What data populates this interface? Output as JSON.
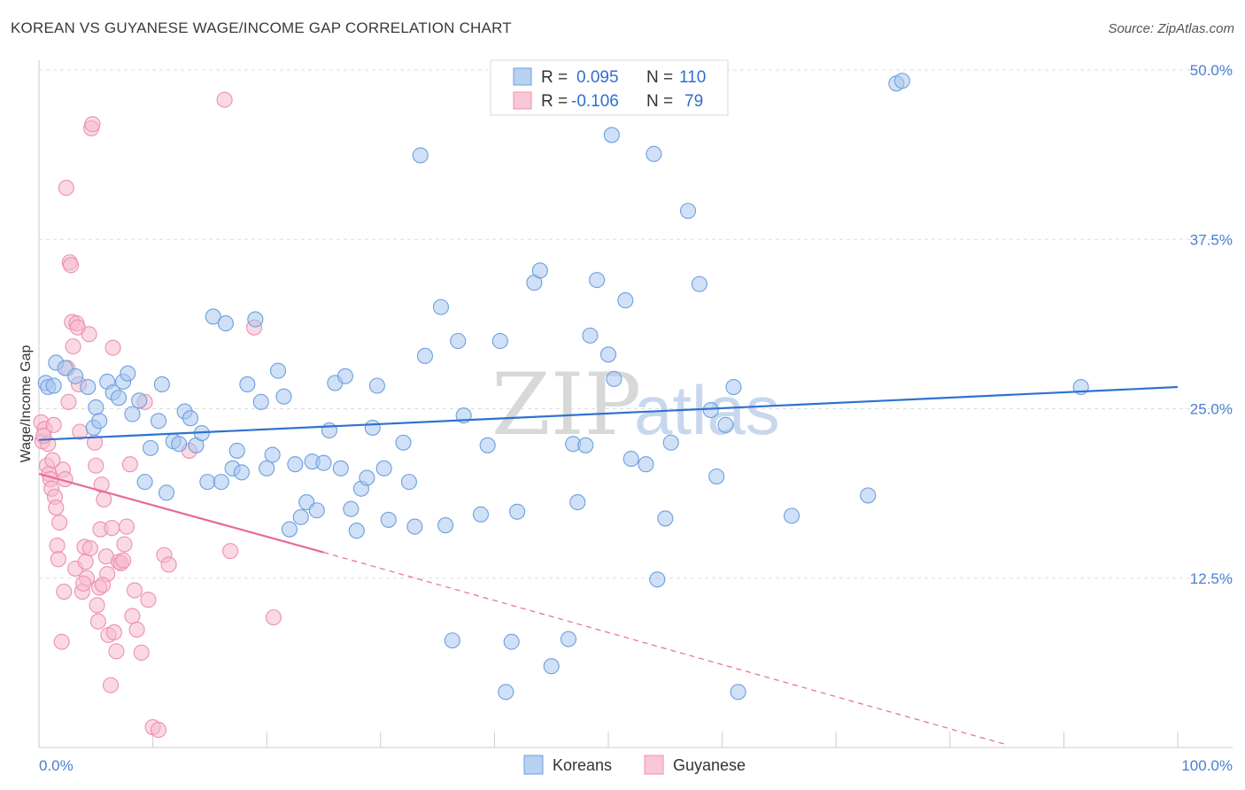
{
  "header": {
    "title": "KOREAN VS GUYANESE WAGE/INCOME GAP CORRELATION CHART",
    "source": "Source: ZipAtlas.com"
  },
  "legend": {
    "rows": [
      {
        "r_label": "R =",
        "r_value": "0.095",
        "n_label": "N =",
        "n_value": "110"
      },
      {
        "r_label": "R =",
        "r_value": "-0.106",
        "n_label": "N =",
        "n_value": "79"
      }
    ]
  },
  "bottom_legend": [
    "Koreans",
    "Guyanese"
  ],
  "watermark": {
    "zip": "ZIP",
    "atlas": "atlas"
  },
  "colors": {
    "koreans_fill": "#a9c6ee",
    "koreans_stroke": "#6d9fe0",
    "koreans_line": "#2f72cf",
    "guyanese_fill": "#f6b9cc",
    "guyanese_stroke": "#ee8fb0",
    "guyanese_line": "#e8699a",
    "tick_label": "#4a7fd0",
    "grid": "#dddddd"
  },
  "chart_data": {
    "type": "scatter",
    "title": "KOREAN VS GUYANESE WAGE/INCOME GAP CORRELATION CHART",
    "xlabel": "",
    "ylabel": "Wage/Income Gap",
    "xlim": [
      0,
      100
    ],
    "ylim": [
      0,
      50
    ],
    "x_tick_labels": [
      "0.0%",
      "100.0%"
    ],
    "y_ticks": [
      12.5,
      25.0,
      37.5,
      50.0
    ],
    "y_tick_labels": [
      "12.5%",
      "25.0%",
      "37.5%",
      "50.0%"
    ],
    "grid": true,
    "legend_position": "top-center",
    "series": [
      {
        "name": "Koreans",
        "trend": {
          "x": [
            0,
            100
          ],
          "y": [
            22.7,
            26.6
          ],
          "style": "solid"
        },
        "points": [
          [
            0.6,
            26.9
          ],
          [
            0.8,
            26.6
          ],
          [
            1.3,
            26.7
          ],
          [
            1.5,
            28.4
          ],
          [
            2.3,
            28.0
          ],
          [
            3.2,
            27.4
          ],
          [
            4.3,
            26.6
          ],
          [
            4.8,
            23.6
          ],
          [
            5.0,
            25.1
          ],
          [
            5.3,
            24.1
          ],
          [
            6.0,
            27.0
          ],
          [
            6.5,
            26.2
          ],
          [
            7.0,
            25.8
          ],
          [
            7.4,
            27.0
          ],
          [
            7.8,
            27.6
          ],
          [
            8.2,
            24.6
          ],
          [
            8.8,
            25.6
          ],
          [
            9.3,
            19.6
          ],
          [
            9.8,
            22.1
          ],
          [
            10.5,
            24.1
          ],
          [
            10.8,
            26.8
          ],
          [
            11.2,
            18.8
          ],
          [
            11.8,
            22.6
          ],
          [
            12.3,
            22.4
          ],
          [
            12.8,
            24.8
          ],
          [
            13.3,
            24.3
          ],
          [
            13.8,
            22.3
          ],
          [
            14.3,
            23.2
          ],
          [
            14.8,
            19.6
          ],
          [
            15.3,
            31.8
          ],
          [
            16.0,
            19.6
          ],
          [
            16.4,
            31.3
          ],
          [
            17.0,
            20.6
          ],
          [
            17.4,
            21.9
          ],
          [
            17.8,
            20.3
          ],
          [
            18.3,
            26.8
          ],
          [
            19.0,
            31.6
          ],
          [
            19.5,
            25.5
          ],
          [
            20.0,
            20.6
          ],
          [
            20.5,
            21.6
          ],
          [
            21.0,
            27.8
          ],
          [
            21.5,
            25.9
          ],
          [
            22.0,
            16.1
          ],
          [
            22.5,
            20.9
          ],
          [
            23.0,
            17.0
          ],
          [
            23.5,
            18.1
          ],
          [
            24.0,
            21.1
          ],
          [
            24.4,
            17.5
          ],
          [
            25.0,
            21.0
          ],
          [
            25.5,
            23.4
          ],
          [
            26.0,
            26.9
          ],
          [
            26.5,
            20.6
          ],
          [
            26.9,
            27.4
          ],
          [
            27.4,
            17.6
          ],
          [
            27.9,
            16.0
          ],
          [
            28.3,
            19.1
          ],
          [
            28.8,
            19.9
          ],
          [
            29.3,
            23.6
          ],
          [
            29.7,
            26.7
          ],
          [
            30.3,
            20.6
          ],
          [
            30.7,
            16.8
          ],
          [
            32.0,
            22.5
          ],
          [
            32.5,
            19.6
          ],
          [
            33.0,
            16.3
          ],
          [
            33.5,
            43.7
          ],
          [
            33.9,
            28.9
          ],
          [
            35.3,
            32.5
          ],
          [
            35.7,
            16.4
          ],
          [
            36.3,
            7.9
          ],
          [
            36.8,
            30.0
          ],
          [
            37.3,
            24.5
          ],
          [
            38.8,
            17.2
          ],
          [
            39.4,
            22.3
          ],
          [
            40.5,
            30.0
          ],
          [
            41.0,
            4.1
          ],
          [
            41.5,
            7.8
          ],
          [
            42.0,
            17.4
          ],
          [
            43.5,
            34.3
          ],
          [
            44.0,
            35.2
          ],
          [
            45.0,
            6.0
          ],
          [
            46.5,
            8.0
          ],
          [
            46.9,
            22.4
          ],
          [
            47.3,
            18.1
          ],
          [
            48.0,
            22.3
          ],
          [
            48.4,
            30.4
          ],
          [
            49.0,
            34.5
          ],
          [
            50.0,
            29.0
          ],
          [
            50.3,
            45.2
          ],
          [
            50.5,
            27.2
          ],
          [
            51.5,
            33.0
          ],
          [
            52.0,
            21.3
          ],
          [
            53.3,
            20.9
          ],
          [
            54.0,
            43.8
          ],
          [
            54.3,
            12.4
          ],
          [
            55.0,
            16.9
          ],
          [
            55.5,
            22.5
          ],
          [
            57.0,
            39.6
          ],
          [
            58.0,
            34.2
          ],
          [
            59.0,
            24.9
          ],
          [
            59.5,
            20.0
          ],
          [
            60.3,
            23.8
          ],
          [
            61.0,
            26.6
          ],
          [
            61.4,
            4.1
          ],
          [
            66.1,
            17.1
          ],
          [
            72.8,
            18.6
          ],
          [
            75.3,
            49.0
          ],
          [
            75.8,
            49.2
          ],
          [
            91.5,
            26.6
          ]
        ]
      },
      {
        "name": "Guyanese",
        "trend": {
          "x": [
            0,
            25
          ],
          "y": [
            20.2,
            14.4
          ],
          "style": "solid"
        },
        "trend_extension": {
          "x": [
            25,
            85
          ],
          "y": [
            14.4,
            0.2
          ],
          "style": "dashed"
        },
        "points": [
          [
            0.2,
            24.0
          ],
          [
            0.3,
            22.6
          ],
          [
            0.5,
            23.5
          ],
          [
            0.7,
            20.8
          ],
          [
            0.8,
            22.4
          ],
          [
            0.9,
            20.2
          ],
          [
            1.0,
            19.8
          ],
          [
            1.1,
            19.1
          ],
          [
            1.3,
            23.8
          ],
          [
            1.4,
            18.5
          ],
          [
            1.5,
            17.7
          ],
          [
            1.6,
            14.9
          ],
          [
            1.7,
            13.9
          ],
          [
            1.8,
            16.6
          ],
          [
            2.0,
            7.8
          ],
          [
            2.1,
            20.5
          ],
          [
            2.2,
            11.5
          ],
          [
            2.3,
            19.8
          ],
          [
            2.4,
            41.3
          ],
          [
            2.5,
            28.0
          ],
          [
            2.6,
            25.5
          ],
          [
            2.7,
            35.8
          ],
          [
            2.8,
            35.6
          ],
          [
            2.9,
            31.4
          ],
          [
            3.0,
            29.6
          ],
          [
            3.2,
            13.2
          ],
          [
            3.3,
            31.3
          ],
          [
            3.4,
            31.0
          ],
          [
            3.5,
            26.8
          ],
          [
            3.6,
            23.3
          ],
          [
            3.8,
            11.5
          ],
          [
            4.0,
            14.8
          ],
          [
            4.1,
            13.7
          ],
          [
            4.2,
            12.5
          ],
          [
            4.4,
            30.5
          ],
          [
            4.5,
            14.7
          ],
          [
            4.6,
            45.7
          ],
          [
            4.7,
            46.0
          ],
          [
            4.9,
            22.5
          ],
          [
            5.0,
            20.8
          ],
          [
            5.1,
            10.5
          ],
          [
            5.2,
            9.3
          ],
          [
            5.3,
            11.8
          ],
          [
            5.4,
            16.1
          ],
          [
            5.5,
            19.4
          ],
          [
            5.7,
            18.3
          ],
          [
            5.9,
            14.1
          ],
          [
            6.0,
            12.8
          ],
          [
            6.1,
            8.3
          ],
          [
            6.3,
            4.6
          ],
          [
            6.4,
            16.2
          ],
          [
            6.5,
            29.5
          ],
          [
            6.6,
            8.5
          ],
          [
            6.8,
            7.1
          ],
          [
            7.0,
            13.7
          ],
          [
            7.2,
            13.6
          ],
          [
            7.4,
            13.8
          ],
          [
            7.5,
            15.0
          ],
          [
            7.7,
            16.3
          ],
          [
            8.0,
            20.9
          ],
          [
            8.2,
            9.7
          ],
          [
            8.4,
            11.6
          ],
          [
            8.6,
            8.7
          ],
          [
            9.0,
            7.0
          ],
          [
            9.3,
            25.5
          ],
          [
            9.6,
            10.9
          ],
          [
            10.0,
            1.5
          ],
          [
            10.5,
            1.3
          ],
          [
            11.0,
            14.2
          ],
          [
            11.4,
            13.5
          ],
          [
            13.2,
            21.9
          ],
          [
            16.3,
            47.8
          ],
          [
            16.8,
            14.5
          ],
          [
            18.9,
            31.0
          ],
          [
            20.6,
            9.6
          ],
          [
            0.4,
            23.0
          ],
          [
            1.2,
            21.2
          ],
          [
            3.9,
            12.1
          ],
          [
            5.6,
            12.0
          ]
        ]
      }
    ]
  }
}
